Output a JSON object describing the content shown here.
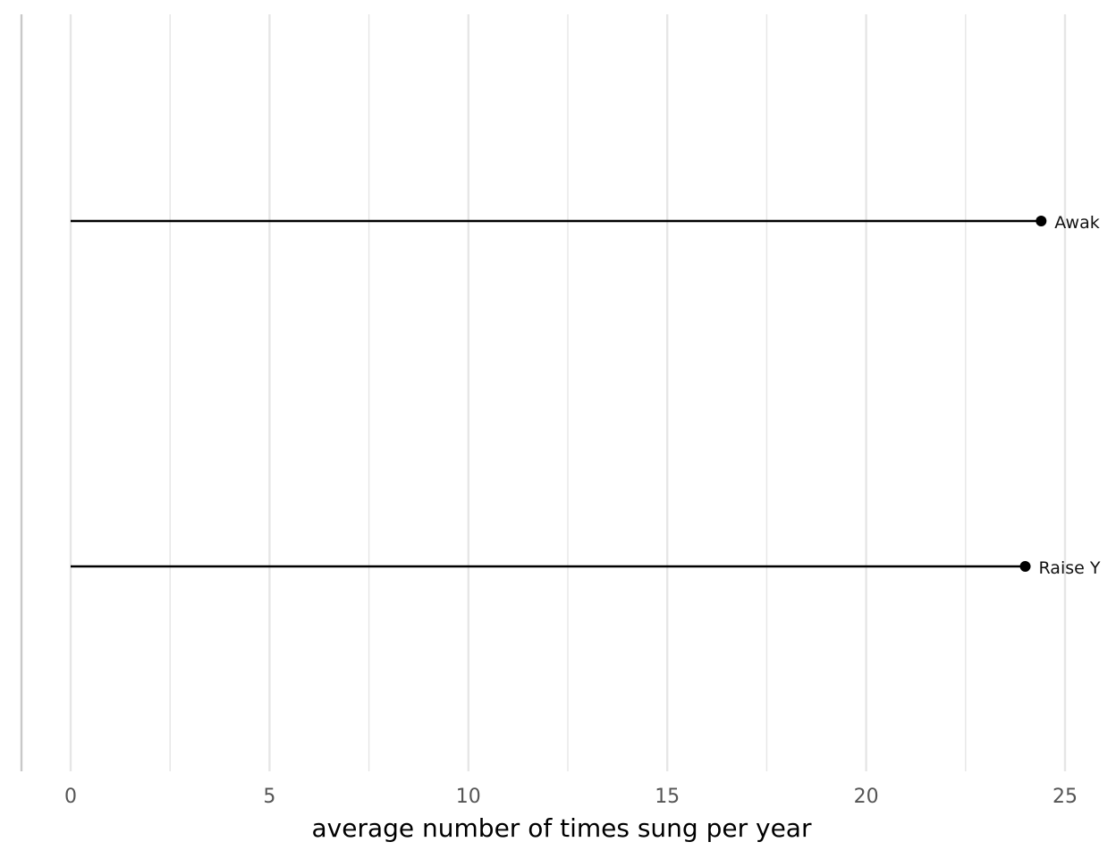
{
  "chart_data": {
    "type": "lollipop",
    "xlabel": "average number of times sung per year",
    "xlim": [
      0,
      25
    ],
    "x_ticks": [
      "0",
      "5",
      "10",
      "15",
      "20",
      "25"
    ],
    "grid": "vertical major and minor",
    "series": [
      {
        "label": "Awak",
        "value": 24.4
      },
      {
        "label": "Raise Y",
        "value": 24.0
      }
    ],
    "colors": {
      "stem": "#000000",
      "grid": "#e6e6e6",
      "axis_line": "#c8c8c8"
    }
  }
}
